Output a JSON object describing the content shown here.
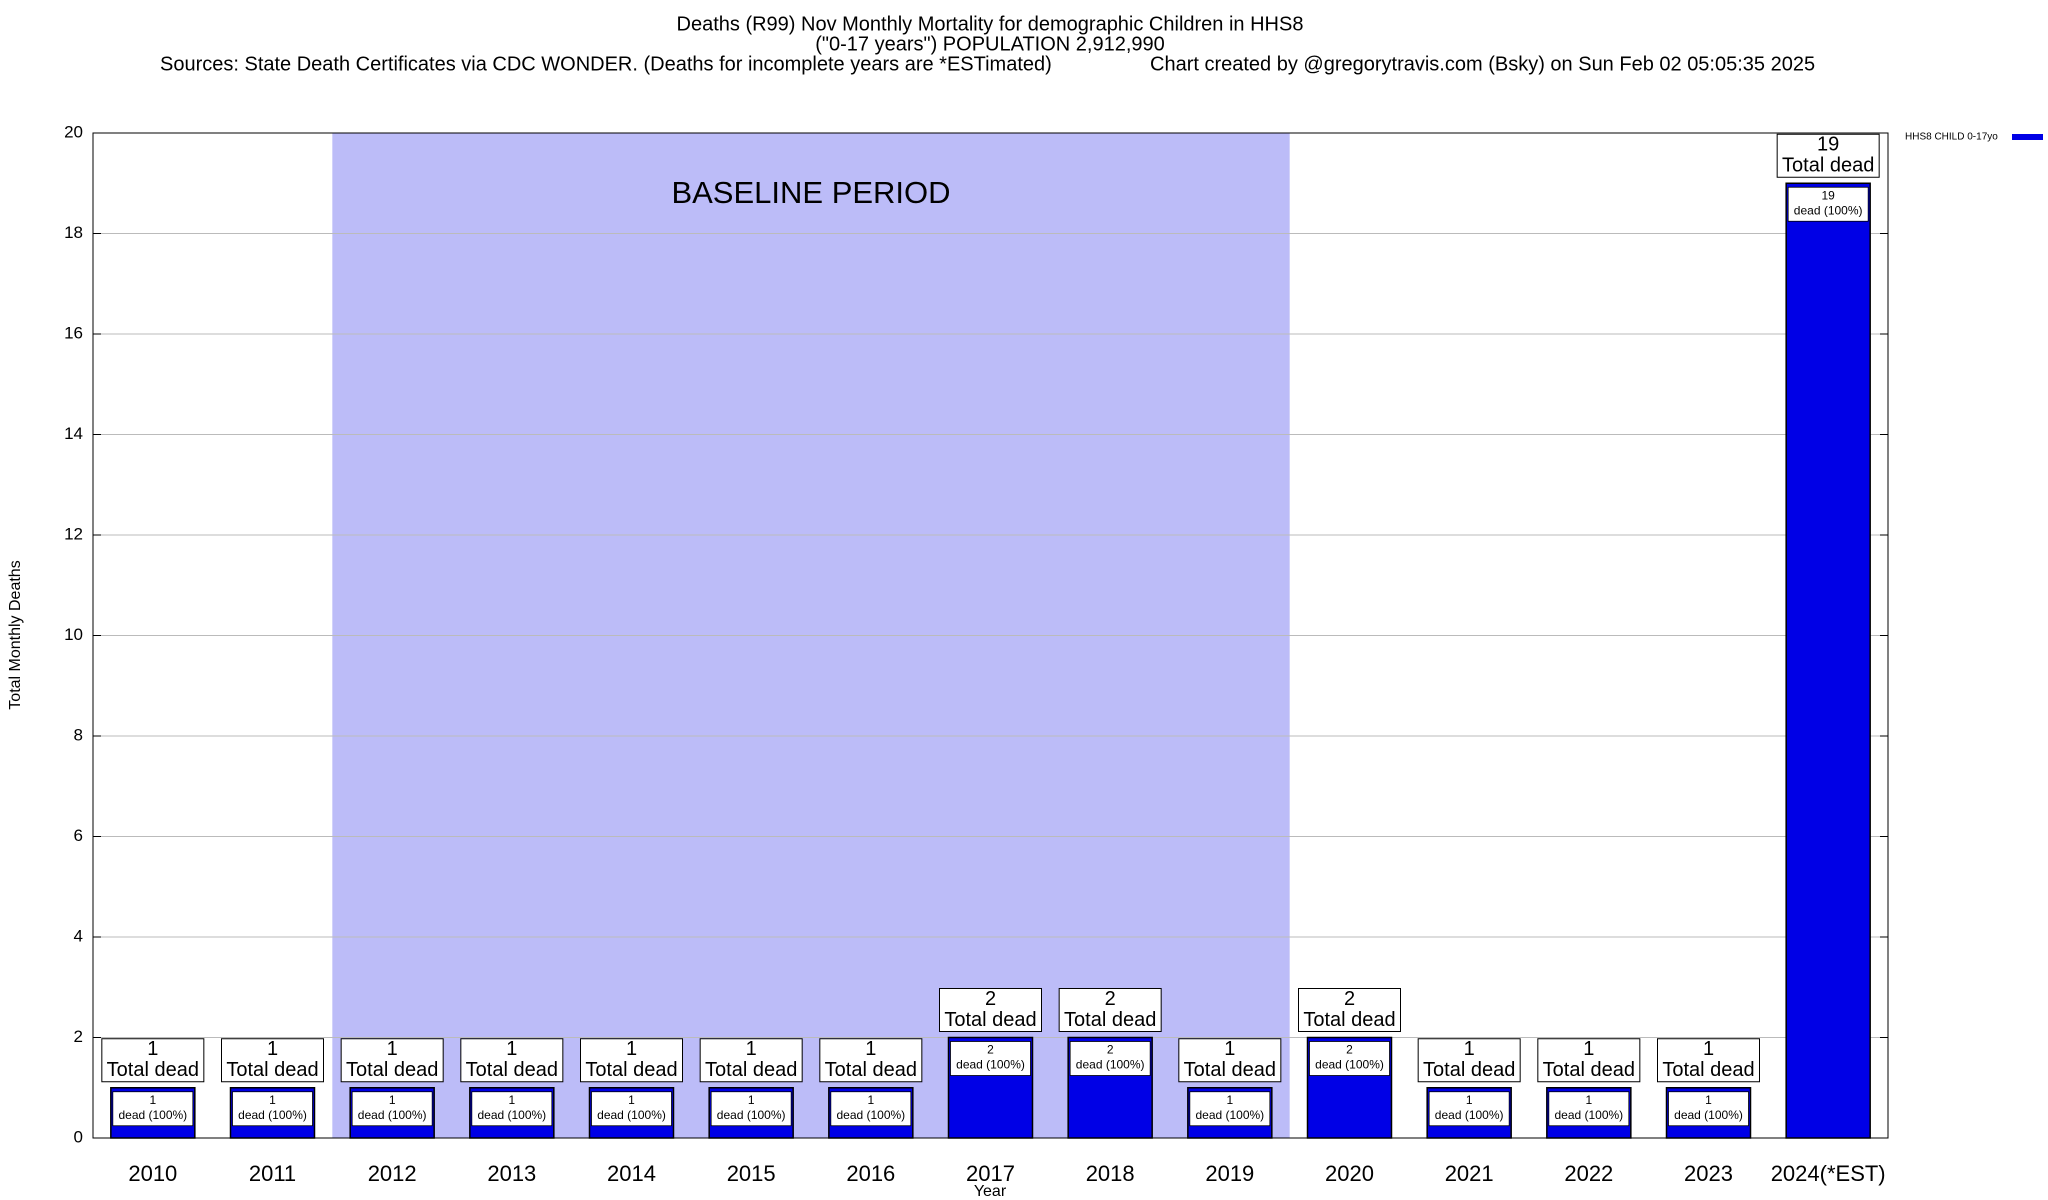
{
  "chart_data": {
    "type": "bar",
    "title": "Deaths (R99) Nov Monthly Mortality for demographic Children in HHS8",
    "subtitle": "(\"0-17 years\") POPULATION 2,912,990",
    "sources": "Sources: State Death Certificates via CDC WONDER. (Deaths for incomplete years are *ESTimated)",
    "credit": "Chart created by @gregorytravis.com (Bsky) on Sun Feb 02 05:05:35 2025",
    "x_label": "Year",
    "y_label": "Total Monthly Deaths",
    "categories": [
      "2010",
      "2011",
      "2012",
      "2013",
      "2014",
      "2015",
      "2016",
      "2017",
      "2018",
      "2019",
      "2020",
      "2021",
      "2022",
      "2023",
      "2024(*EST)"
    ],
    "series": [
      {
        "name": "HHS8 CHILD 0-17yo",
        "color": "#0000e6",
        "values": [
          1,
          1,
          1,
          1,
          1,
          1,
          1,
          2,
          2,
          1,
          2,
          1,
          1,
          1,
          19
        ]
      }
    ],
    "total_label": "Total dead",
    "inner_label": "dead (100%)",
    "baseline": {
      "label": "BASELINE PERIOD",
      "start": "2012",
      "end": "2019",
      "color": "#bcbcf8"
    },
    "ylim": [
      0,
      20
    ],
    "yticks": [
      0,
      2,
      4,
      6,
      8,
      10,
      12,
      14,
      16,
      18,
      20
    ],
    "grid": true,
    "legend": "top-right"
  }
}
